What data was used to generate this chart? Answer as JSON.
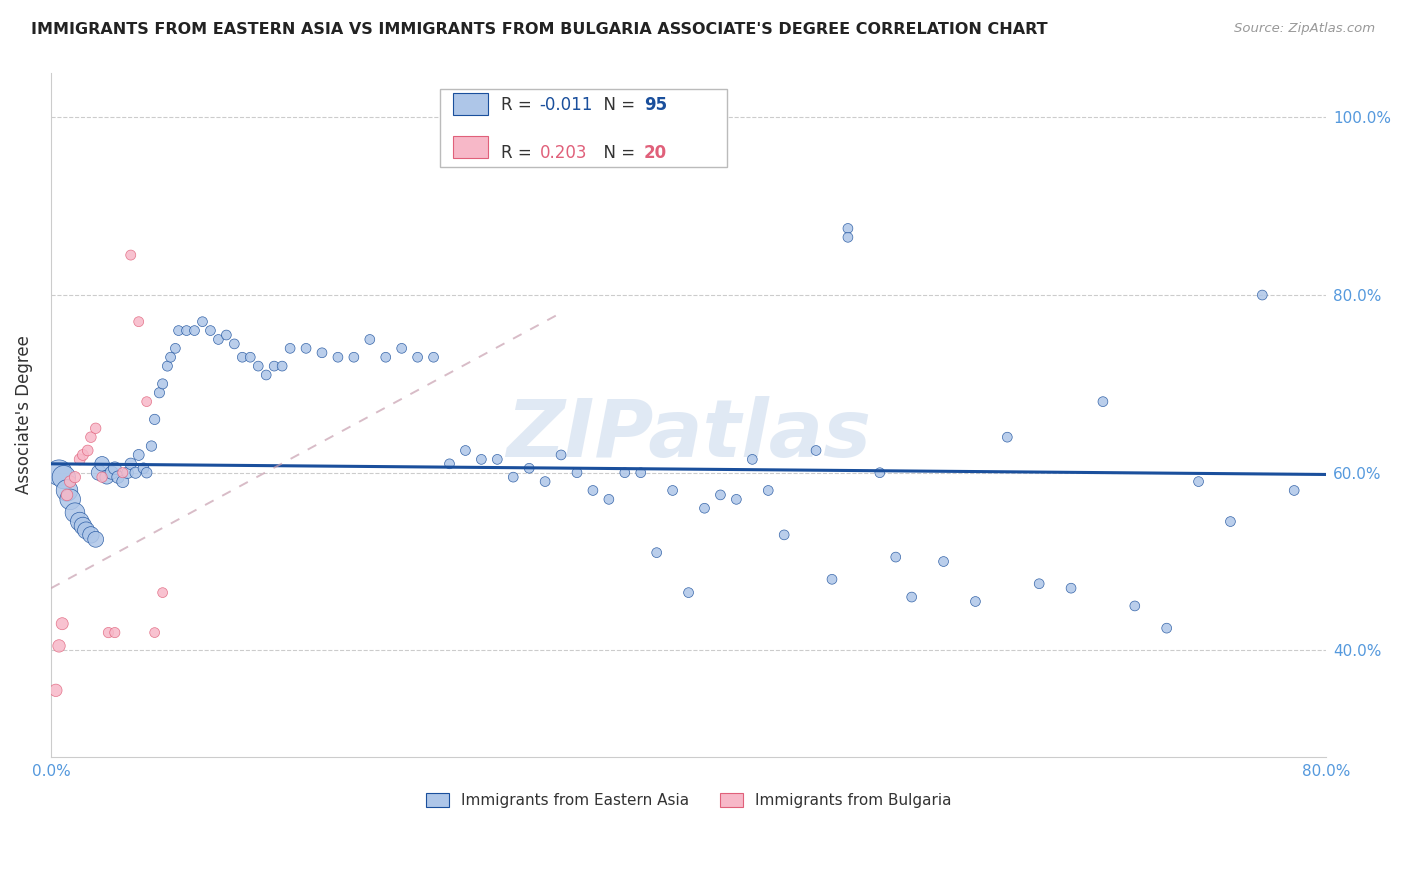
{
  "title": "IMMIGRANTS FROM EASTERN ASIA VS IMMIGRANTS FROM BULGARIA ASSOCIATE'S DEGREE CORRELATION CHART",
  "source": "Source: ZipAtlas.com",
  "ylabel": "Associate's Degree",
  "legend_label_blue": "Immigrants from Eastern Asia",
  "legend_label_pink": "Immigrants from Bulgaria",
  "R_blue": -0.011,
  "N_blue": 95,
  "R_pink": 0.203,
  "N_pink": 20,
  "xlim": [
    0.0,
    0.8
  ],
  "ylim": [
    0.28,
    1.05
  ],
  "yticks": [
    0.4,
    0.6,
    0.8,
    1.0
  ],
  "ytick_labels": [
    "40.0%",
    "60.0%",
    "80.0%",
    "100.0%"
  ],
  "xticks": [
    0.0,
    0.1,
    0.2,
    0.3,
    0.4,
    0.5,
    0.6,
    0.7,
    0.8
  ],
  "xtick_labels": [
    "0.0%",
    "",
    "",
    "",
    "",
    "",
    "",
    "",
    "80.0%"
  ],
  "blue_color": "#aec6e8",
  "blue_line_color": "#1a4f9c",
  "pink_color": "#f7b8c8",
  "pink_line_color": "#e0607a",
  "axis_color": "#5599dd",
  "grid_color": "#cccccc",
  "watermark": "ZIPatlas",
  "blue_x": [
    0.005,
    0.008,
    0.01,
    0.012,
    0.015,
    0.018,
    0.02,
    0.022,
    0.025,
    0.028,
    0.03,
    0.032,
    0.035,
    0.038,
    0.04,
    0.042,
    0.045,
    0.048,
    0.05,
    0.053,
    0.055,
    0.058,
    0.06,
    0.063,
    0.065,
    0.068,
    0.07,
    0.073,
    0.075,
    0.078,
    0.08,
    0.085,
    0.09,
    0.095,
    0.1,
    0.105,
    0.11,
    0.115,
    0.12,
    0.125,
    0.13,
    0.135,
    0.14,
    0.145,
    0.15,
    0.16,
    0.17,
    0.18,
    0.19,
    0.2,
    0.21,
    0.22,
    0.23,
    0.24,
    0.25,
    0.26,
    0.27,
    0.28,
    0.29,
    0.3,
    0.31,
    0.32,
    0.33,
    0.34,
    0.35,
    0.36,
    0.37,
    0.38,
    0.39,
    0.4,
    0.42,
    0.44,
    0.46,
    0.48,
    0.5,
    0.5,
    0.52,
    0.53,
    0.54,
    0.56,
    0.58,
    0.6,
    0.62,
    0.64,
    0.66,
    0.68,
    0.7,
    0.72,
    0.74,
    0.76,
    0.78,
    0.49,
    0.41,
    0.43,
    0.45
  ],
  "blue_y": [
    0.6,
    0.595,
    0.58,
    0.57,
    0.555,
    0.545,
    0.54,
    0.535,
    0.53,
    0.525,
    0.6,
    0.61,
    0.595,
    0.6,
    0.605,
    0.595,
    0.59,
    0.6,
    0.61,
    0.6,
    0.62,
    0.605,
    0.6,
    0.63,
    0.66,
    0.69,
    0.7,
    0.72,
    0.73,
    0.74,
    0.76,
    0.76,
    0.76,
    0.77,
    0.76,
    0.75,
    0.755,
    0.745,
    0.73,
    0.73,
    0.72,
    0.71,
    0.72,
    0.72,
    0.74,
    0.74,
    0.735,
    0.73,
    0.73,
    0.75,
    0.73,
    0.74,
    0.73,
    0.73,
    0.61,
    0.625,
    0.615,
    0.615,
    0.595,
    0.605,
    0.59,
    0.62,
    0.6,
    0.58,
    0.57,
    0.6,
    0.6,
    0.51,
    0.58,
    0.465,
    0.575,
    0.615,
    0.53,
    0.625,
    0.875,
    0.865,
    0.6,
    0.505,
    0.46,
    0.5,
    0.455,
    0.64,
    0.475,
    0.47,
    0.68,
    0.45,
    0.425,
    0.59,
    0.545,
    0.8,
    0.58,
    0.48,
    0.56,
    0.57,
    0.58
  ],
  "blue_sizes": [
    340,
    280,
    240,
    220,
    200,
    180,
    160,
    150,
    140,
    130,
    120,
    110,
    100,
    90,
    85,
    80,
    75,
    70,
    68,
    65,
    62,
    60,
    58,
    56,
    55,
    54,
    53,
    52,
    51,
    50,
    50,
    50,
    50,
    50,
    50,
    50,
    50,
    50,
    50,
    50,
    50,
    50,
    50,
    50,
    50,
    50,
    50,
    50,
    50,
    50,
    50,
    50,
    50,
    50,
    50,
    50,
    50,
    50,
    50,
    50,
    50,
    50,
    50,
    50,
    50,
    50,
    50,
    50,
    50,
    50,
    50,
    50,
    50,
    50,
    50,
    50,
    50,
    50,
    50,
    50,
    50,
    50,
    50,
    50,
    50,
    50,
    50,
    50,
    50,
    50,
    50,
    50,
    50,
    50,
    50
  ],
  "pink_x": [
    0.003,
    0.005,
    0.007,
    0.01,
    0.012,
    0.015,
    0.018,
    0.02,
    0.023,
    0.025,
    0.028,
    0.032,
    0.036,
    0.04,
    0.045,
    0.05,
    0.055,
    0.06,
    0.065,
    0.07
  ],
  "pink_y": [
    0.355,
    0.405,
    0.43,
    0.575,
    0.59,
    0.595,
    0.615,
    0.62,
    0.625,
    0.64,
    0.65,
    0.595,
    0.42,
    0.42,
    0.6,
    0.845,
    0.77,
    0.68,
    0.42,
    0.465
  ],
  "pink_sizes": [
    80,
    80,
    75,
    70,
    68,
    65,
    63,
    62,
    60,
    58,
    57,
    56,
    55,
    54,
    53,
    52,
    51,
    50,
    50,
    50
  ],
  "blue_trend_x": [
    0.0,
    0.8
  ],
  "blue_trend_y": [
    0.61,
    0.598
  ],
  "pink_trend_x": [
    0.0,
    0.32
  ],
  "pink_trend_y": [
    0.47,
    0.78
  ]
}
